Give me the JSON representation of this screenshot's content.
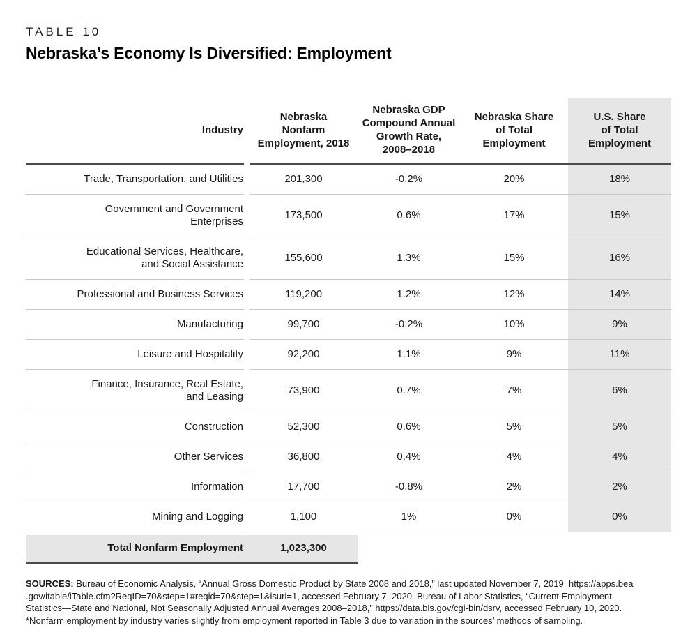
{
  "page": {
    "label": "TABLE 10",
    "title": "Nebraska’s Economy Is Diversified: Employment"
  },
  "table": {
    "headers": {
      "industry": "Industry",
      "employment": "Nebraska\nNonfarm\nEmployment, 2018",
      "gdp": "Nebraska GDP\nCompound Annual\nGrowth Rate,\n2008–2018",
      "ne_share": "Nebraska Share\nof Total\nEmployment",
      "us_share": "U.S. Share\nof Total\nEmployment"
    },
    "rows": [
      {
        "industry": "Trade, Transportation, and Utilities",
        "employment": "201,300",
        "gdp": "-0.2%",
        "ne_share": "20%",
        "us_share": "18%"
      },
      {
        "industry": "Government and Government\nEnterprises",
        "employment": "173,500",
        "gdp": "0.6%",
        "ne_share": "17%",
        "us_share": "15%"
      },
      {
        "industry": "Educational Services, Healthcare,\nand Social Assistance",
        "employment": "155,600",
        "gdp": "1.3%",
        "ne_share": "15%",
        "us_share": "16%"
      },
      {
        "industry": "Professional and Business Services",
        "employment": "119,200",
        "gdp": "1.2%",
        "ne_share": "12%",
        "us_share": "14%"
      },
      {
        "industry": "Manufacturing",
        "employment": "99,700",
        "gdp": "-0.2%",
        "ne_share": "10%",
        "us_share": "9%"
      },
      {
        "industry": "Leisure and Hospitality",
        "employment": "92,200",
        "gdp": "1.1%",
        "ne_share": "9%",
        "us_share": "11%"
      },
      {
        "industry": "Finance, Insurance, Real Estate,\nand Leasing",
        "employment": "73,900",
        "gdp": "0.7%",
        "ne_share": "7%",
        "us_share": "6%"
      },
      {
        "industry": "Construction",
        "employment": "52,300",
        "gdp": "0.6%",
        "ne_share": "5%",
        "us_share": "5%"
      },
      {
        "industry": "Other Services",
        "employment": "36,800",
        "gdp": "0.4%",
        "ne_share": "4%",
        "us_share": "4%"
      },
      {
        "industry": "Information",
        "employment": "17,700",
        "gdp": "-0.8%",
        "ne_share": "2%",
        "us_share": "2%"
      },
      {
        "industry": "Mining and Logging",
        "employment": "1,100",
        "gdp": "1%",
        "ne_share": "0%",
        "us_share": "0%"
      }
    ],
    "total": {
      "label": "Total Nonfarm Employment",
      "value": "1,023,300"
    }
  },
  "footer": {
    "sources_label": "SOURCES:",
    "sources_text": " Bureau of Economic Analysis, “Annual Gross Domestic Product by State 2008 and 2018,” last updated November 7, 2019, https://apps.bea\n.gov/itable/iTable.cfm?ReqID=70&step=1#reqid=70&step=1&isuri=1, accessed February 7, 2020. Bureau of Labor Statistics, “Current Employment\nStatistics—State and National, Not Seasonally Adjusted Annual Averages 2008–2018,” https://data.bls.gov/cgi-bin/dsrv, accessed February 10, 2020.",
    "note": "*Nonfarm employment by industry varies slightly from employment reported in Table 3 due to variation in the sources’ methods of sampling."
  },
  "colors": {
    "shade": "#e6e6e6",
    "dark_border": "#4b4b4b",
    "light_border": "#c9c9c9",
    "text": "#1a1a1a"
  }
}
